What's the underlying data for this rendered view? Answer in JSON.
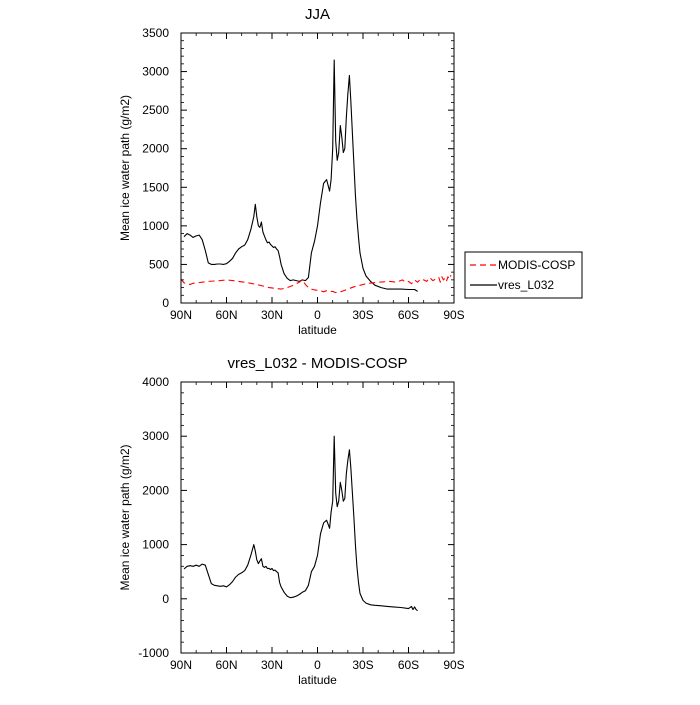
{
  "chart_data": [
    {
      "type": "line",
      "title": "JJA",
      "xlabel": "latitude",
      "ylabel": "Mean ice water path (g/m2)",
      "xlim": [
        90,
        -90
      ],
      "ylim": [
        0,
        3500
      ],
      "xticks": [
        90,
        60,
        30,
        0,
        -30,
        -60,
        -90
      ],
      "xtick_labels": [
        "90N",
        "60N",
        "30N",
        "0",
        "30S",
        "60S",
        "90S"
      ],
      "yticks": [
        0,
        500,
        1000,
        1500,
        2000,
        2500,
        3000,
        3500
      ],
      "ytick_labels": [
        "0",
        "500",
        "1000",
        "1500",
        "2000",
        "2500",
        "3000",
        "3500"
      ],
      "legend": {
        "position": "right",
        "entries": [
          "MODIS-COSP",
          "vres_L032"
        ]
      },
      "series": [
        {
          "name": "vres_L032",
          "color": "#000000",
          "dash": "solid",
          "x": [
            88,
            86,
            84,
            82,
            80,
            78,
            76,
            74,
            72,
            70,
            68,
            66,
            64,
            62,
            60,
            58,
            56,
            54,
            52,
            50,
            48,
            46,
            44,
            42,
            41,
            40,
            39,
            38,
            37,
            36,
            35,
            34,
            33,
            32,
            31,
            30,
            29,
            28,
            27,
            26,
            25,
            24,
            22,
            20,
            18,
            16,
            14,
            12,
            10,
            8,
            6,
            4,
            2,
            0,
            -2,
            -4,
            -6,
            -8,
            -9,
            -10,
            -11,
            -12,
            -13,
            -14,
            -15,
            -16,
            -17,
            -18,
            -19,
            -20,
            -21,
            -22,
            -23,
            -24,
            -25,
            -26,
            -27,
            -28,
            -30,
            -32,
            -35,
            -38,
            -42,
            -46,
            -50,
            -55,
            -60,
            -64,
            -66
          ],
          "y": [
            860,
            900,
            880,
            850,
            870,
            880,
            820,
            680,
            520,
            500,
            500,
            505,
            505,
            500,
            510,
            540,
            580,
            650,
            700,
            730,
            750,
            820,
            950,
            1120,
            1280,
            1120,
            1000,
            980,
            1050,
            920,
            870,
            820,
            780,
            790,
            760,
            740,
            720,
            730,
            700,
            680,
            600,
            500,
            380,
            320,
            290,
            300,
            290,
            280,
            300,
            290,
            330,
            650,
            800,
            1000,
            1300,
            1550,
            1600,
            1450,
            1600,
            2000,
            3150,
            2100,
            1850,
            1950,
            2300,
            2150,
            1950,
            2000,
            2400,
            2700,
            2950,
            2600,
            2200,
            1800,
            1400,
            1100,
            850,
            650,
            450,
            350,
            280,
            230,
            200,
            180,
            180,
            180,
            175,
            175,
            150
          ]
        },
        {
          "name": "MODIS-COSP",
          "color": "#ff0000",
          "dash": "dashed",
          "x": [
            90,
            88,
            86,
            84,
            82,
            80,
            76,
            72,
            68,
            64,
            60,
            56,
            52,
            48,
            44,
            40,
            36,
            32,
            28,
            24,
            20,
            16,
            12,
            10,
            8,
            6,
            4,
            2,
            0,
            -2,
            -4,
            -6,
            -8,
            -10,
            -12,
            -16,
            -20,
            -24,
            -28,
            -32,
            -36,
            -40,
            -44,
            -48,
            -52,
            -56,
            -58,
            -60,
            -62,
            -64,
            -66,
            -68,
            -70,
            -72,
            -74,
            -76,
            -78,
            -80,
            -81,
            -82,
            -83,
            -84,
            -85,
            -86,
            -87,
            -88
          ],
          "y": [
            310,
            260,
            250,
            240,
            255,
            260,
            270,
            280,
            285,
            290,
            300,
            290,
            280,
            270,
            255,
            240,
            220,
            200,
            190,
            180,
            200,
            230,
            270,
            300,
            240,
            200,
            180,
            170,
            165,
            160,
            145,
            160,
            150,
            150,
            135,
            150,
            180,
            210,
            230,
            250,
            260,
            270,
            275,
            280,
            270,
            300,
            270,
            280,
            250,
            300,
            270,
            310,
            300,
            280,
            330,
            290,
            310,
            330,
            270,
            340,
            300,
            320,
            280,
            340,
            310,
            360
          ]
        }
      ]
    },
    {
      "type": "line",
      "title": "vres_L032 - MODIS-COSP",
      "xlabel": "latitude",
      "ylabel": "Mean ice water path (g/m2)",
      "xlim": [
        90,
        -90
      ],
      "ylim": [
        -1000,
        4000
      ],
      "xticks": [
        90,
        60,
        30,
        0,
        -30,
        -60,
        -90
      ],
      "xtick_labels": [
        "90N",
        "60N",
        "30N",
        "0",
        "30S",
        "60S",
        "90S"
      ],
      "yticks": [
        -1000,
        0,
        1000,
        2000,
        3000,
        4000
      ],
      "ytick_labels": [
        "-1000",
        "0",
        "1000",
        "2000",
        "3000",
        "4000"
      ],
      "series": [
        {
          "name": "vres_L032 - MODIS-COSP",
          "color": "#000000",
          "dash": "solid",
          "x": [
            88,
            86,
            84,
            82,
            80,
            78,
            76,
            74,
            72,
            70,
            68,
            66,
            64,
            62,
            60,
            58,
            56,
            54,
            52,
            50,
            48,
            46,
            44,
            42,
            41,
            40,
            39,
            38,
            37,
            36,
            35,
            34,
            33,
            32,
            31,
            30,
            29,
            28,
            27,
            26,
            25,
            24,
            22,
            20,
            18,
            16,
            14,
            12,
            10,
            8,
            6,
            4,
            2,
            0,
            -2,
            -4,
            -6,
            -8,
            -9,
            -10,
            -11,
            -12,
            -13,
            -14,
            -15,
            -16,
            -17,
            -18,
            -19,
            -20,
            -21,
            -22,
            -23,
            -24,
            -25,
            -26,
            -27,
            -28,
            -30,
            -32,
            -35,
            -38,
            -42,
            -46,
            -50,
            -55,
            -60,
            -62,
            -63,
            -64,
            -65,
            -66
          ],
          "y": [
            550,
            600,
            610,
            600,
            620,
            600,
            640,
            620,
            450,
            280,
            250,
            240,
            230,
            240,
            220,
            260,
            320,
            400,
            450,
            480,
            520,
            620,
            800,
            1000,
            880,
            720,
            650,
            700,
            740,
            600,
            580,
            600,
            560,
            560,
            540,
            560,
            520,
            530,
            500,
            480,
            300,
            220,
            120,
            50,
            20,
            30,
            50,
            80,
            120,
            150,
            250,
            500,
            600,
            800,
            1200,
            1400,
            1450,
            1300,
            1600,
            1800,
            3000,
            1950,
            1700,
            1800,
            2150,
            2000,
            1800,
            1850,
            2300,
            2550,
            2750,
            2400,
            1950,
            1500,
            1000,
            600,
            300,
            100,
            -30,
            -80,
            -110,
            -120,
            -130,
            -140,
            -150,
            -160,
            -180,
            -140,
            -200,
            -150,
            -200,
            -220
          ]
        }
      ]
    }
  ]
}
